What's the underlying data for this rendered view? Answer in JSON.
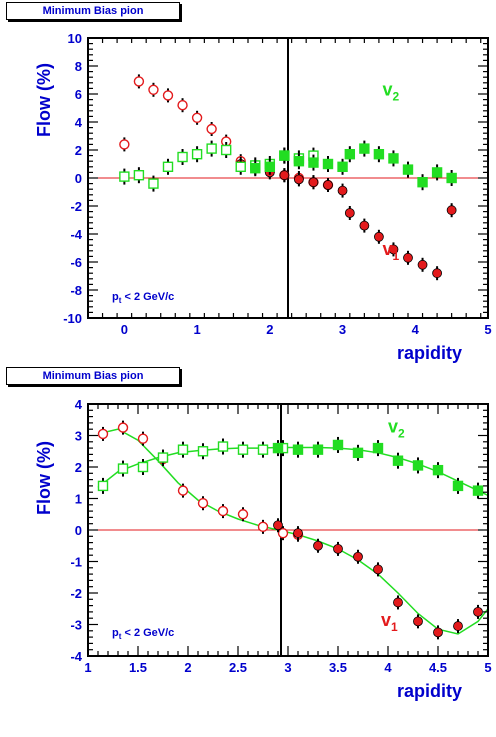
{
  "colors": {
    "v1": "#e31a1c",
    "v2": "#22dd22",
    "axis": "#0000cc",
    "zero_line": "#e31a1c",
    "frame": "#000000"
  },
  "chart_data": [
    {
      "type": "scatter",
      "panel_label": "Minimum Bias pion",
      "xlabel": "rapidity",
      "ylabel": "Flow (%)",
      "annotation": "p_t < 2 GeV/c",
      "annotation_parts": {
        "p": "p",
        "sub": "t",
        "rest": " < 2 GeV/c"
      },
      "xlim": [
        -0.5,
        5
      ],
      "ylim": [
        -10,
        10
      ],
      "xticks": [
        0,
        1,
        2,
        3,
        4,
        5
      ],
      "yticks": [
        -10,
        -8,
        -6,
        -4,
        -2,
        0,
        2,
        4,
        6,
        8,
        10
      ],
      "reflect_line_x": 2.25,
      "series": [
        {
          "name": "v1",
          "label_main": "v",
          "label_sub": "1",
          "color": "#e31a1c",
          "marker": "circle",
          "label_pos": [
            3.55,
            -5.5
          ],
          "open": {
            "x": [
              0,
              0.2,
              0.4,
              0.6,
              0.8,
              1.0,
              1.2,
              1.4,
              1.6,
              1.8,
              2.0,
              2.2,
              2.4,
              2.6,
              2.8
            ],
            "y": [
              2.4,
              6.9,
              6.3,
              5.9,
              5.2,
              4.3,
              3.5,
              2.6,
              1.2,
              0.8,
              0.5,
              0.2,
              0.0,
              -0.3,
              -0.5
            ]
          },
          "filled": {
            "x": [
              1.6,
              1.8,
              2.0,
              2.2,
              2.4,
              2.6,
              2.8,
              3.0,
              3.1,
              3.3,
              3.5,
              3.7,
              3.9,
              4.1,
              4.3,
              4.5
            ],
            "y": [
              1.0,
              0.7,
              0.4,
              0.2,
              -0.1,
              -0.3,
              -0.5,
              -0.9,
              -2.5,
              -3.4,
              -4.2,
              -5.1,
              -5.7,
              -6.2,
              -6.8,
              -2.3
            ]
          }
        },
        {
          "name": "v2",
          "label_main": "v",
          "label_sub": "2",
          "color": "#22dd22",
          "marker": "square",
          "label_pos": [
            3.55,
            5.9
          ],
          "open": {
            "x": [
              0,
              0.2,
              0.4,
              0.6,
              0.8,
              1.0,
              1.2,
              1.4,
              1.6,
              1.8,
              2.0,
              2.2,
              2.4,
              2.6
            ],
            "y": [
              0.1,
              0.2,
              -0.4,
              0.8,
              1.5,
              1.7,
              2.1,
              2.0,
              0.8,
              0.9,
              1.0,
              1.6,
              1.4,
              1.6
            ]
          },
          "filled": {
            "x": [
              1.8,
              2.0,
              2.2,
              2.4,
              2.6,
              2.8,
              3.0,
              3.1,
              3.3,
              3.5,
              3.7,
              3.9,
              4.1,
              4.3,
              4.5
            ],
            "y": [
              0.7,
              0.8,
              1.6,
              1.2,
              1.1,
              1.0,
              0.8,
              1.7,
              2.1,
              1.7,
              1.4,
              0.6,
              -0.3,
              0.4,
              0.0
            ]
          }
        }
      ]
    },
    {
      "type": "scatter",
      "panel_label": "Minimum Bias pion",
      "xlabel": "rapidity",
      "ylabel": "Flow (%)",
      "annotation": "p_t < 2 GeV/c",
      "annotation_parts": {
        "p": "p",
        "sub": "t",
        "rest": " < 2 GeV/c"
      },
      "xlim": [
        1,
        5
      ],
      "ylim": [
        -4,
        4
      ],
      "xticks": [
        1,
        1.5,
        2,
        2.5,
        3,
        3.5,
        4,
        4.5,
        5
      ],
      "yticks": [
        -4,
        -3,
        -2,
        -1,
        0,
        1,
        2,
        3,
        4
      ],
      "reflect_line_x": 2.93,
      "series": [
        {
          "name": "v1",
          "label_main": "v",
          "label_sub": "1",
          "color": "#e31a1c",
          "marker": "circle",
          "label_pos": [
            3.93,
            -3.05
          ],
          "open": {
            "x": [
              1.15,
              1.35,
              1.55,
              1.75,
              1.95,
              2.15,
              2.35,
              2.55,
              2.75,
              2.95,
              3.1
            ],
            "y": [
              3.05,
              3.25,
              2.9,
              2.25,
              1.25,
              0.85,
              0.6,
              0.5,
              0.1,
              -0.1,
              -0.15
            ]
          },
          "filled": {
            "x": [
              2.9,
              3.1,
              3.3,
              3.5,
              3.7,
              3.9,
              4.1,
              4.3,
              4.5,
              4.7,
              4.9
            ],
            "y": [
              0.15,
              -0.1,
              -0.5,
              -0.6,
              -0.85,
              -1.25,
              -2.3,
              -2.9,
              -3.25,
              -3.05,
              -2.6
            ]
          },
          "fit": {
            "x": [
              1.1,
              1.3,
              1.5,
              1.7,
              1.9,
              2.1,
              2.3,
              2.5,
              2.7,
              2.9,
              3.1,
              3.3,
              3.5,
              3.7,
              3.9,
              4.1,
              4.3,
              4.5,
              4.7,
              4.9,
              5.0
            ],
            "y": [
              3.05,
              3.2,
              2.85,
              2.2,
              1.5,
              0.95,
              0.6,
              0.35,
              0.15,
              0.0,
              -0.15,
              -0.35,
              -0.6,
              -0.95,
              -1.4,
              -2.0,
              -2.65,
              -3.15,
              -3.3,
              -2.9,
              -2.5
            ]
          }
        },
        {
          "name": "v2",
          "label_main": "v",
          "label_sub": "2",
          "color": "#22dd22",
          "marker": "square",
          "label_pos": [
            4.0,
            3.1
          ],
          "open": {
            "x": [
              1.15,
              1.35,
              1.55,
              1.75,
              1.95,
              2.15,
              2.35,
              2.55,
              2.75,
              2.95
            ],
            "y": [
              1.4,
              1.95,
              2.0,
              2.3,
              2.55,
              2.5,
              2.65,
              2.55,
              2.55,
              2.6
            ]
          },
          "filled": {
            "x": [
              2.9,
              3.1,
              3.3,
              3.5,
              3.7,
              3.9,
              4.1,
              4.3,
              4.5,
              4.7,
              4.9
            ],
            "y": [
              2.6,
              2.55,
              2.55,
              2.7,
              2.45,
              2.6,
              2.2,
              2.05,
              1.9,
              1.4,
              1.25
            ]
          },
          "fit": {
            "x": [
              1.1,
              1.3,
              1.5,
              1.7,
              1.9,
              2.1,
              2.3,
              2.5,
              2.7,
              2.9,
              3.1,
              3.3,
              3.5,
              3.7,
              3.9,
              4.1,
              4.3,
              4.5,
              4.7,
              4.9,
              5.0
            ],
            "y": [
              1.35,
              1.85,
              2.1,
              2.3,
              2.45,
              2.52,
              2.57,
              2.6,
              2.6,
              2.62,
              2.62,
              2.62,
              2.6,
              2.55,
              2.45,
              2.3,
              2.1,
              1.85,
              1.55,
              1.25,
              1.1
            ]
          }
        }
      ]
    }
  ]
}
